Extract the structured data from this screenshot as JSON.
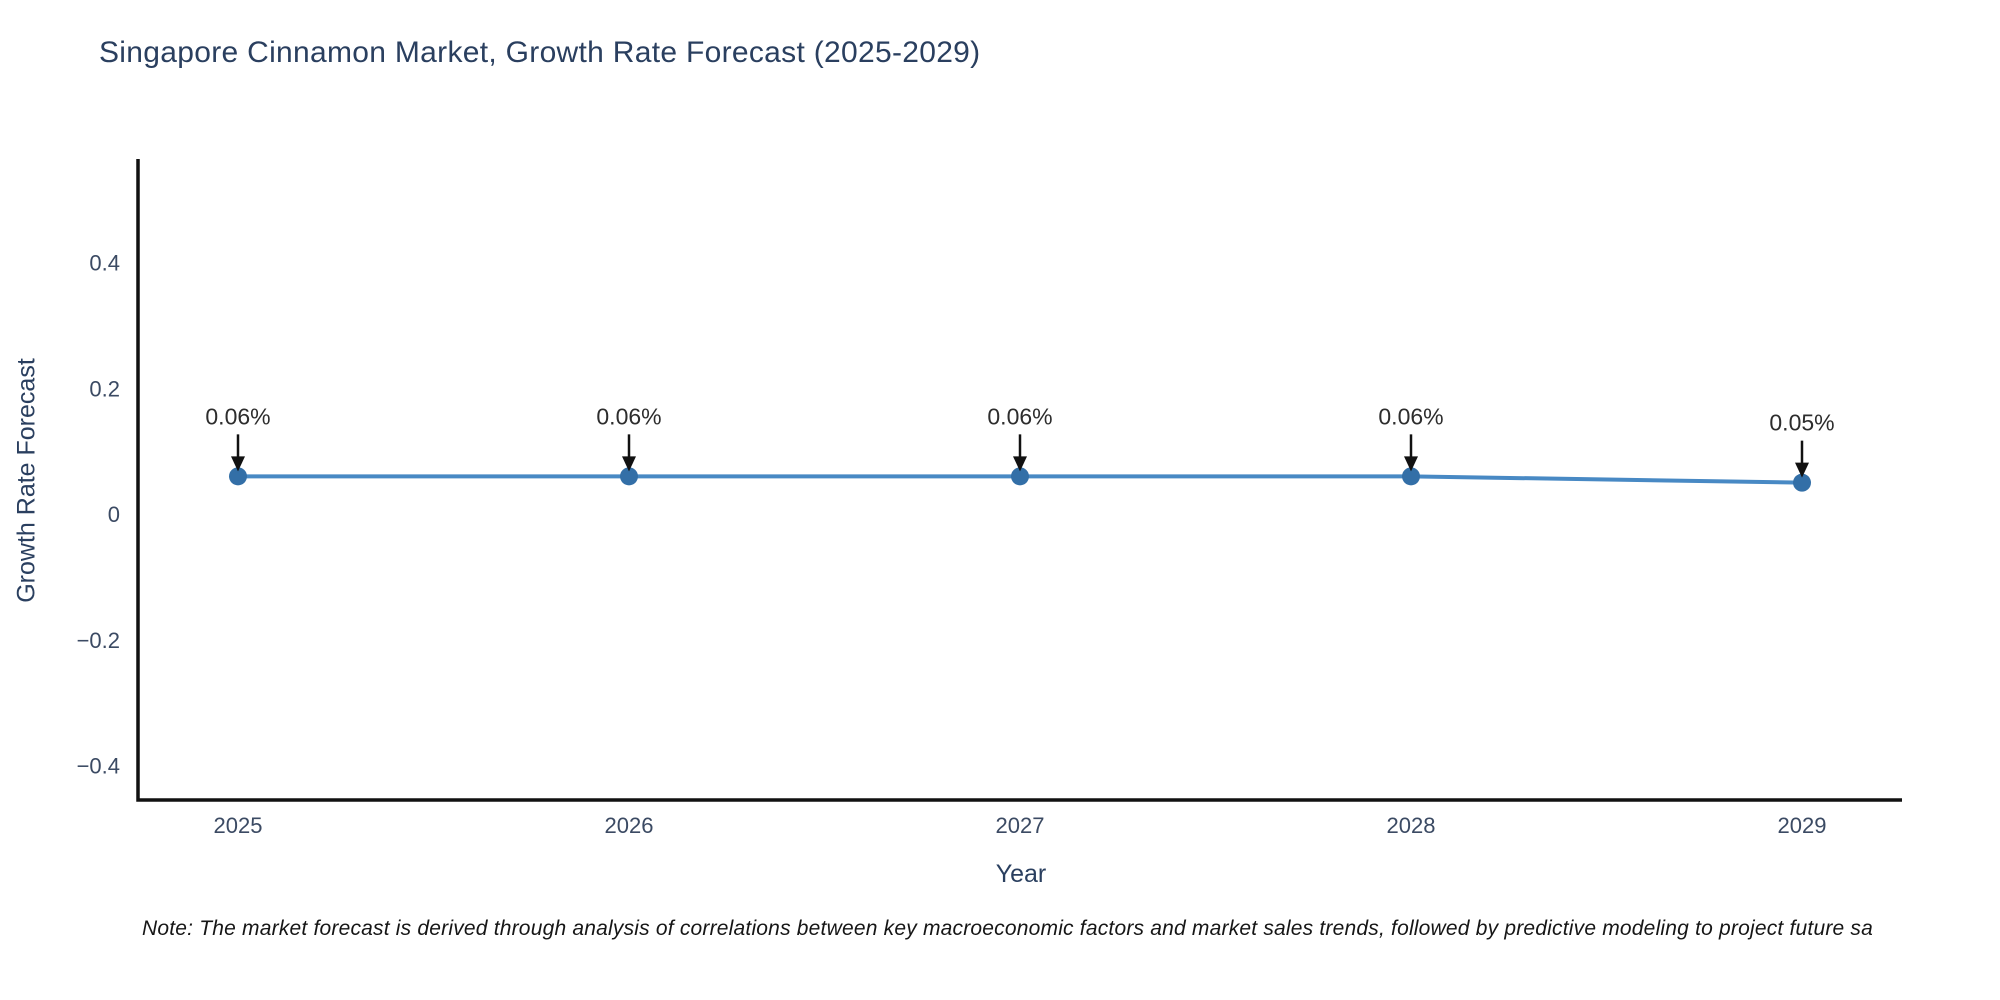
{
  "note": "Note: The market forecast is derived through analysis of correlations between key macroeconomic factors and market sales trends, followed by predictive modeling to project future sa",
  "chart_data": {
    "type": "line",
    "title": "Singapore Cinnamon Market, Growth Rate Forecast (2025-2029)",
    "xlabel": "Year",
    "ylabel": "Growth Rate Forecast",
    "x": [
      "2025",
      "2026",
      "2027",
      "2028",
      "2029"
    ],
    "series": [
      {
        "name": "Growth Rate Forecast",
        "values": [
          0.06,
          0.06,
          0.06,
          0.06,
          0.05
        ],
        "point_labels": [
          "0.06%",
          "0.06%",
          "0.06%",
          "0.06%",
          "0.05%"
        ]
      }
    ],
    "yticks": [
      0.4,
      0.2,
      0,
      -0.2,
      -0.4
    ],
    "ylim": [
      -0.455,
      0.565
    ],
    "grid": false,
    "legend": "none",
    "colors": {
      "line": "#4889c4",
      "marker": "#336fa7",
      "axis": "#111111",
      "title_text": "#2a3f5f",
      "tick_text": "#3b4a63"
    }
  }
}
